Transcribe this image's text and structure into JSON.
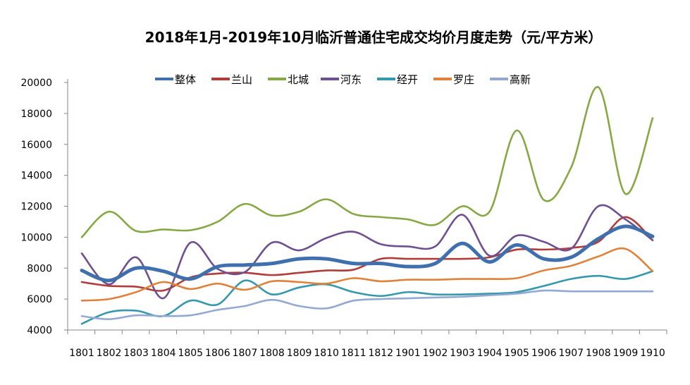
{
  "chart_data": {
    "type": "line",
    "title": "2018年1月-2019年10月临沂普通住宅成交均价月度走势（元/平方米）",
    "xlabel": "",
    "ylabel": "",
    "ylim": [
      4000,
      20000
    ],
    "yticks": [
      4000,
      6000,
      8000,
      10000,
      12000,
      14000,
      16000,
      18000,
      20000
    ],
    "grid": false,
    "legend_position": "top",
    "smooth": true,
    "categories": [
      "1801",
      "1802",
      "1803",
      "1804",
      "1805",
      "1806",
      "1807",
      "1808",
      "1809",
      "1810",
      "1811",
      "1812",
      "1901",
      "1902",
      "1903",
      "1904",
      "1905",
      "1906",
      "1907",
      "1908",
      "1909",
      "1910"
    ],
    "series": [
      {
        "name": "整体",
        "color": "#3f6fad",
        "values": [
          7850,
          7200,
          8000,
          7800,
          7300,
          8100,
          8200,
          8300,
          8600,
          8600,
          8300,
          8300,
          8100,
          8300,
          9600,
          8400,
          9500,
          8600,
          8700,
          9900,
          10700,
          10050
        ]
      },
      {
        "name": "兰山",
        "color": "#b03d3a",
        "values": [
          7100,
          6850,
          6800,
          6550,
          7400,
          7650,
          7700,
          7550,
          7700,
          7850,
          7900,
          8600,
          8600,
          8600,
          8600,
          8700,
          9200,
          9200,
          9300,
          9700,
          11300,
          9800
        ]
      },
      {
        "name": "北城",
        "color": "#86a844",
        "values": [
          10000,
          11650,
          10400,
          10500,
          10450,
          11000,
          12150,
          11400,
          11650,
          12450,
          11500,
          11300,
          11150,
          10800,
          12000,
          11650,
          16900,
          12400,
          14500,
          19700,
          12800,
          17700
        ]
      },
      {
        "name": "河东",
        "color": "#6e4f8f",
        "values": [
          8950,
          6950,
          8700,
          6050,
          9650,
          7950,
          7750,
          9650,
          9150,
          9950,
          10350,
          9550,
          9400,
          9400,
          11450,
          8800,
          10100,
          9700,
          9250,
          12000,
          11150,
          9800
        ]
      },
      {
        "name": "经开",
        "color": "#3598ad",
        "values": [
          4400,
          5150,
          5250,
          4900,
          5900,
          5650,
          7200,
          6300,
          6750,
          6950,
          6450,
          6200,
          6450,
          6300,
          6300,
          6350,
          6450,
          6850,
          7300,
          7500,
          7300,
          7800
        ]
      },
      {
        "name": "罗庄",
        "color": "#e0823a",
        "values": [
          5900,
          6000,
          6450,
          7100,
          6650,
          7000,
          6600,
          7150,
          7100,
          7000,
          7350,
          7150,
          7250,
          7250,
          7300,
          7300,
          7350,
          7850,
          8150,
          8750,
          9250,
          7800
        ]
      },
      {
        "name": "高新",
        "color": "#94a9d2",
        "values": [
          4900,
          4700,
          4950,
          4900,
          4950,
          5300,
          5550,
          5950,
          5550,
          5400,
          5900,
          6000,
          6050,
          6100,
          6150,
          6250,
          6350,
          6550,
          6500,
          6500,
          6500,
          6500
        ]
      }
    ]
  }
}
